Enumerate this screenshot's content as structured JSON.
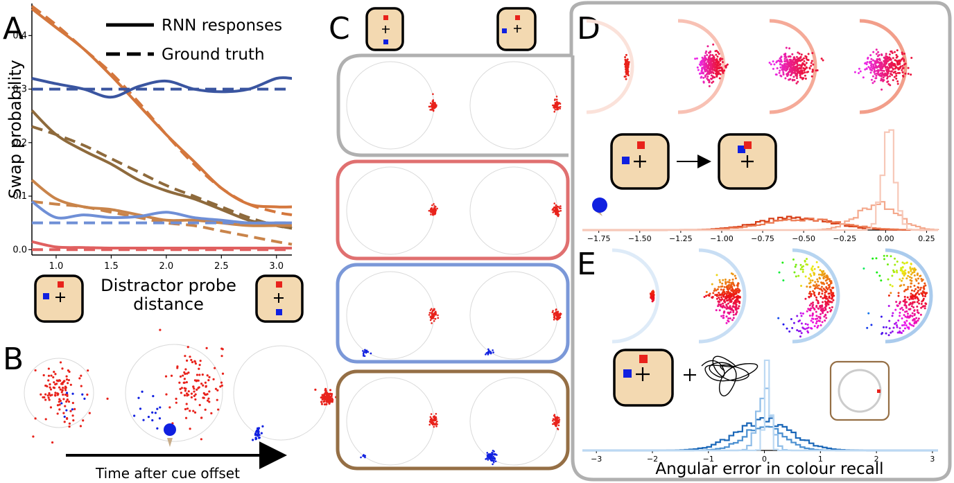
{
  "panels": {
    "A": "A",
    "B": "B",
    "C": "C",
    "D": "D",
    "E": "E"
  },
  "colors": {
    "orange": "#d4773d",
    "navy": "#3a55a0",
    "brown": "#8e6a3c",
    "light_orange": "#c9844a",
    "light_blue": "#6f8fd6",
    "pink_red": "#e06060",
    "c_red": "#e07070",
    "c_blue": "#7b98d8",
    "c_brown": "#956f45",
    "gray": "#b0b0b0",
    "card_fill": "#f3d9b1",
    "red_sq": "#e8221b",
    "blue_sq": "#1020e0",
    "hist_d": [
      "#d63c14",
      "#ec7a52",
      "#f4a98d",
      "#f7c8b8"
    ],
    "hist_e": [
      "#1a67b8",
      "#4a8fd0",
      "#8fbde8",
      "#bcd9f3"
    ]
  },
  "panel_a": {
    "legend": {
      "solid": "RNN responses",
      "dashed": "Ground truth"
    },
    "chart_data": {
      "type": "line",
      "title": "",
      "xlabel": "Distractor probe distance",
      "ylabel": "Swap probability",
      "xlim": [
        0.78,
        3.14
      ],
      "ylim": [
        -0.01,
        0.46
      ],
      "xticks": [
        1.0,
        1.5,
        2.0,
        2.5,
        3.0
      ],
      "xtick_labels": [
        "1.0",
        "1.5",
        "2.0",
        "2.5",
        "3.0"
      ],
      "yticks": [
        0.0,
        0.1,
        0.2,
        0.3,
        0.4
      ],
      "ytick_labels": [
        "0.0",
        "0.1",
        "0.2",
        "0.3",
        "0.4"
      ],
      "x": [
        0.78,
        1.0,
        1.25,
        1.5,
        1.75,
        2.0,
        2.25,
        2.5,
        2.75,
        3.0,
        3.14
      ],
      "series": [
        {
          "name": "RNN responses",
          "color": "#d4773d",
          "style": "solid",
          "values": [
            0.45,
            0.415,
            0.375,
            0.325,
            0.27,
            0.215,
            0.165,
            0.115,
            0.085,
            0.08,
            0.08
          ]
        },
        {
          "name": "Ground truth",
          "color": "#d4773d",
          "style": "dashed",
          "values": [
            0.455,
            0.42,
            0.375,
            0.33,
            0.275,
            0.215,
            0.16,
            0.115,
            0.085,
            0.07,
            0.065
          ]
        },
        {
          "name": "RNN responses",
          "color": "#3a55a0",
          "style": "solid",
          "values": [
            0.32,
            0.31,
            0.3,
            0.285,
            0.305,
            0.315,
            0.3,
            0.295,
            0.3,
            0.32,
            0.32
          ]
        },
        {
          "name": "Ground truth",
          "color": "#3a55a0",
          "style": "dashed",
          "values": [
            0.3,
            0.3,
            0.3,
            0.3,
            0.3,
            0.3,
            0.3,
            0.3,
            0.3,
            0.3,
            0.3
          ]
        },
        {
          "name": "RNN responses",
          "color": "#8e6a3c",
          "style": "solid",
          "values": [
            0.26,
            0.215,
            0.185,
            0.16,
            0.13,
            0.11,
            0.095,
            0.075,
            0.055,
            0.045,
            0.04
          ]
        },
        {
          "name": "Ground truth",
          "color": "#8e6a3c",
          "style": "dashed",
          "values": [
            0.23,
            0.215,
            0.195,
            0.17,
            0.145,
            0.12,
            0.1,
            0.08,
            0.06,
            0.045,
            0.04
          ]
        },
        {
          "name": "RNN responses",
          "color": "#c9844a",
          "style": "solid",
          "values": [
            0.13,
            0.095,
            0.08,
            0.075,
            0.065,
            0.055,
            0.055,
            0.05,
            0.045,
            0.045,
            0.045
          ]
        },
        {
          "name": "Ground truth",
          "color": "#c9844a",
          "style": "dashed",
          "values": [
            0.09,
            0.085,
            0.08,
            0.07,
            0.06,
            0.05,
            0.045,
            0.035,
            0.025,
            0.015,
            0.01
          ]
        },
        {
          "name": "RNN responses",
          "color": "#6f8fd6",
          "style": "solid",
          "values": [
            0.09,
            0.06,
            0.065,
            0.06,
            0.062,
            0.07,
            0.06,
            0.055,
            0.05,
            0.05,
            0.05
          ]
        },
        {
          "name": "Ground truth",
          "color": "#6f8fd6",
          "style": "dashed",
          "values": [
            0.05,
            0.05,
            0.05,
            0.05,
            0.05,
            0.05,
            0.05,
            0.05,
            0.05,
            0.05,
            0.05
          ]
        },
        {
          "name": "RNN responses",
          "color": "#e06060",
          "style": "solid",
          "values": [
            0.015,
            0.005,
            0.004,
            0.003,
            0.003,
            0.003,
            0.003,
            0.003,
            0.003,
            0.003,
            0.003
          ]
        },
        {
          "name": "Ground truth",
          "color": "#e06060",
          "style": "dashed",
          "values": [
            0.0,
            0.0,
            0.0,
            0.0,
            0.0,
            0.0,
            0.0,
            0.0,
            0.0,
            0.0,
            0.0
          ]
        }
      ]
    },
    "xlabel_line1": "Distractor probe",
    "xlabel_line2": "distance"
  },
  "panel_b": {
    "arrow_label": "Time after cue offset"
  },
  "panel_d": {
    "chart_data": {
      "type": "histogram",
      "xlim": [
        -1.85,
        0.32
      ],
      "xticks": [
        -1.75,
        -1.5,
        -1.25,
        -1.0,
        -0.75,
        -0.5,
        -0.25,
        0.0,
        0.25
      ],
      "xtick_labels": [
        "−1.75",
        "−1.50",
        "−1.25",
        "−1.00",
        "−0.75",
        "−0.50",
        "−0.25",
        "0.00",
        "0.25"
      ],
      "series": [
        {
          "name": "",
          "color": "#d63c14",
          "center": -0.55,
          "width": 0.22,
          "peak": 0.13
        },
        {
          "name": "",
          "color": "#ec7a52",
          "center": -0.5,
          "width": 0.24,
          "peak": 0.11
        },
        {
          "name": "",
          "color": "#f4a98d",
          "center": -0.05,
          "width": 0.12,
          "peak": 0.27
        },
        {
          "name": "",
          "color": "#f7c8b8",
          "center": 0.02,
          "width": 0.04,
          "peak": 1.0
        }
      ]
    }
  },
  "panel_e": {
    "xlabel": "Angular error in colour recall",
    "chart_data": {
      "type": "histogram",
      "xlim": [
        -3.25,
        3.1
      ],
      "xticks": [
        -3,
        -2,
        -1,
        0,
        1,
        2,
        3
      ],
      "xtick_labels": [
        "−3",
        "−2",
        "−1",
        "0",
        "1",
        "2",
        "3"
      ],
      "series": [
        {
          "name": "",
          "color": "#1a67b8",
          "center": 0.0,
          "width": 0.5,
          "peak": 0.3
        },
        {
          "name": "",
          "color": "#4a8fd0",
          "center": 0.0,
          "width": 0.35,
          "peak": 0.25
        },
        {
          "name": "",
          "color": "#8fbde8",
          "center": 0.0,
          "width": 0.12,
          "peak": 0.62
        },
        {
          "name": "",
          "color": "#bcd9f3",
          "center": 0.05,
          "width": 0.05,
          "peak": 1.0
        }
      ]
    }
  }
}
